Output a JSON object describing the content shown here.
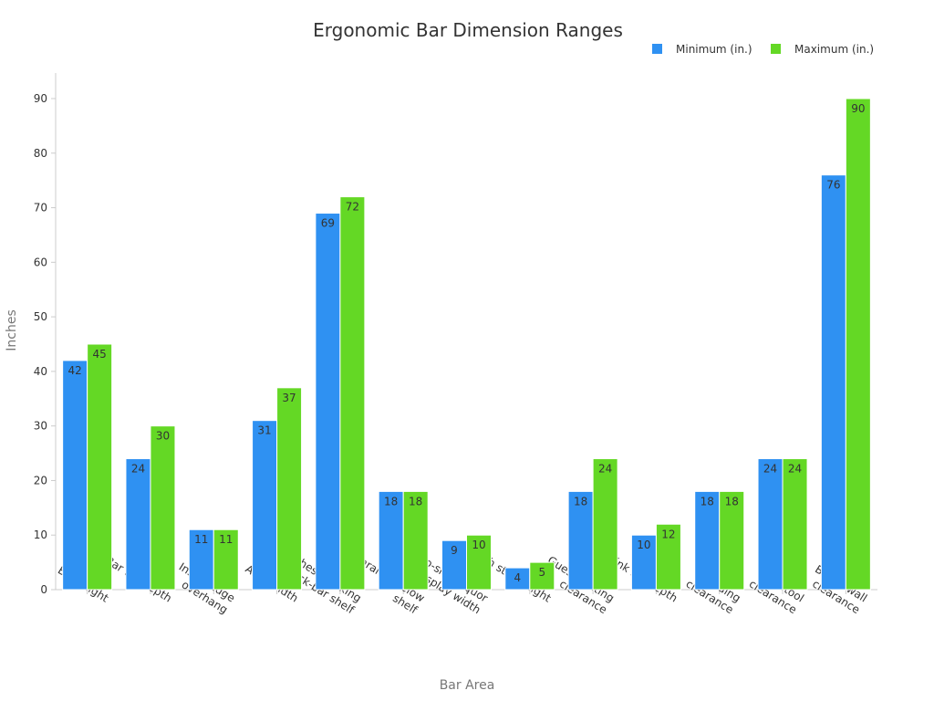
{
  "chart_data": {
    "type": "bar",
    "title": "Ergonomic Bar Dimension Ranges",
    "xlabel": "Bar Area",
    "ylabel": "Inches",
    "ylim": [
      0,
      90
    ],
    "yticks": [
      0,
      10,
      20,
      30,
      40,
      50,
      60,
      70,
      80,
      90
    ],
    "grid": false,
    "legend_position": "top-right",
    "categories": [
      [
        "Bar height"
      ],
      [
        "Bar top depth"
      ],
      [
        "Inside edge",
        "overhang"
      ],
      [
        "Aisle width"
      ],
      [
        "Highest working",
        "back-bar shelf"
      ],
      [
        "Clearance below",
        "shelf"
      ],
      [
        "Two-shelf liquor",
        "display width"
      ],
      [
        "Each step height"
      ],
      [
        "Guest seating",
        "clearance"
      ],
      [
        "Drink rail depth"
      ],
      [
        "Standing",
        "clearance"
      ],
      [
        "Stool",
        "clearance"
      ],
      [
        "Bar-to-wall",
        "clearance"
      ]
    ],
    "series": [
      {
        "name": "Minimum (in.)",
        "color": "#2f91f2",
        "values": [
          42,
          24,
          11,
          31,
          69,
          18,
          9,
          4,
          18,
          10,
          18,
          24,
          76
        ]
      },
      {
        "name": "Maximum (in.)",
        "color": "#64d825",
        "values": [
          45,
          30,
          11,
          37,
          72,
          18,
          10,
          5,
          24,
          12,
          18,
          24,
          90
        ]
      }
    ]
  }
}
